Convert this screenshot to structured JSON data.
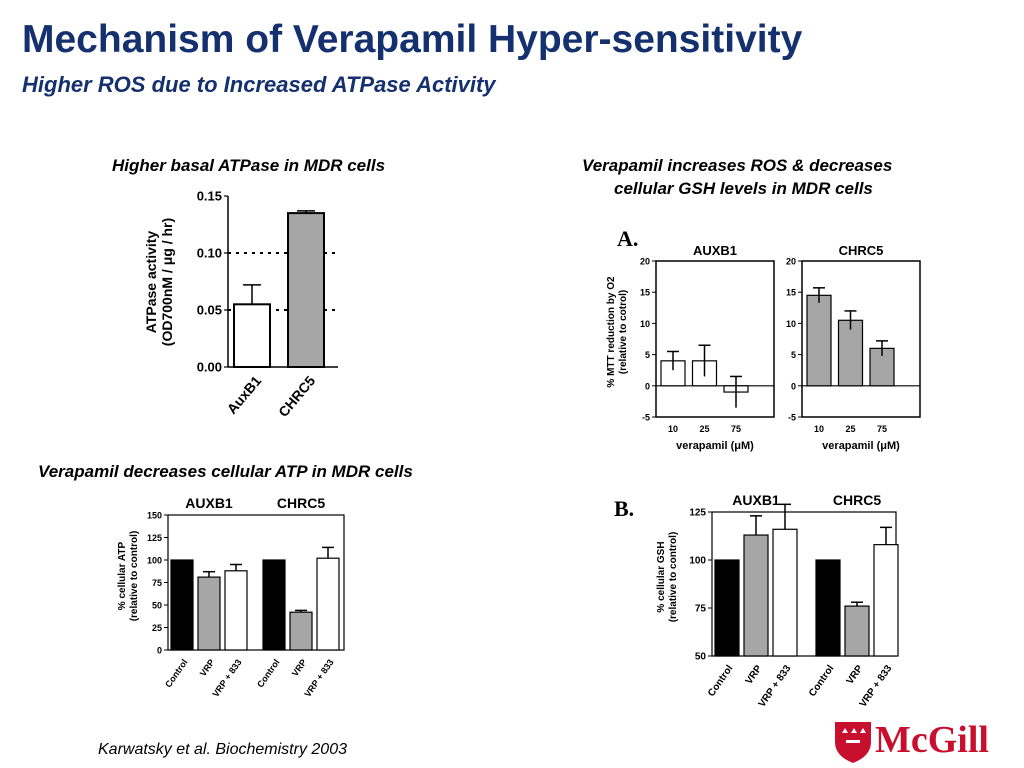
{
  "header": {
    "title": "Mechanism of Verapamil Hyper-sensitivity",
    "subtitle": "Higher ROS due to Increased ATPase Activity"
  },
  "captions": {
    "atpase": "Higher basal ATPase in MDR cells",
    "ros_line1": "Verapamil increases ROS & decreases",
    "ros_line2": "cellular GSH levels in MDR cells",
    "atp": "Verapamil decreases cellular ATP in MDR cells"
  },
  "reference": "Karwatsky et al. Biochemistry 2003",
  "logo": {
    "text": "McGill",
    "color": "#c8102e"
  },
  "colors": {
    "title": "#14306e",
    "black_bar": "#000000",
    "gray_bar": "#a6a6a6",
    "white_bar": "#ffffff"
  },
  "chart_data": [
    {
      "id": "atpase",
      "type": "bar",
      "categories": [
        "AuxB1",
        "CHRC5"
      ],
      "values": [
        0.055,
        0.135
      ],
      "errors": [
        0.017,
        0.002
      ],
      "ylabel_line1": "ATPase activity",
      "ylabel_line2": "(OD700nM / μg / hr)",
      "ylim": [
        0,
        0.15
      ],
      "yticks": [
        "0.00",
        "0.05",
        "0.10",
        "0.15"
      ],
      "dotted_lines": [
        0.05,
        0.1
      ]
    },
    {
      "id": "mtt_auxb1",
      "type": "bar",
      "panel_label": "A.",
      "title": "AUXB1",
      "categories": [
        "10",
        "25",
        "75"
      ],
      "values": [
        4,
        4,
        -1
      ],
      "errors": [
        1.5,
        2.5,
        2.5
      ],
      "xlabel": "verapamil (μM)",
      "ylabel_line1": "% MTT reduction by O2",
      "ylabel_line2": "(relative to cotrol)",
      "ylim": [
        -5,
        20
      ],
      "yticks": [
        "-5",
        "0",
        "5",
        "10",
        "15",
        "20"
      ]
    },
    {
      "id": "mtt_chrc5",
      "type": "bar",
      "title": "CHRC5",
      "categories": [
        "10",
        "25",
        "75"
      ],
      "values": [
        14.5,
        10.5,
        6
      ],
      "errors": [
        1.2,
        1.5,
        1.2
      ],
      "xlabel": "verapamil (μM)",
      "ylim": [
        -5,
        20
      ],
      "yticks": [
        "-5",
        "0",
        "5",
        "10",
        "15",
        "20"
      ]
    },
    {
      "id": "atp",
      "type": "bar",
      "group_titles": [
        "AUXB1",
        "CHRC5"
      ],
      "categories": [
        "Control",
        "VRP",
        "VRP + 833"
      ],
      "series": [
        {
          "name": "AUXB1",
          "values": [
            100,
            81,
            88
          ],
          "errors": [
            0,
            6,
            7
          ]
        },
        {
          "name": "CHRC5",
          "values": [
            100,
            42,
            102
          ],
          "errors": [
            0,
            2,
            12
          ]
        }
      ],
      "ylabel_line1": "% cellular ATP",
      "ylabel_line2": "(relative to control)",
      "ylim": [
        0,
        150
      ],
      "yticks": [
        "0",
        "25",
        "50",
        "75",
        "100",
        "125",
        "150"
      ]
    },
    {
      "id": "gsh",
      "type": "bar",
      "panel_label": "B.",
      "group_titles": [
        "AUXB1",
        "CHRC5"
      ],
      "categories": [
        "Control",
        "VRP",
        "VRP + 833"
      ],
      "series": [
        {
          "name": "AUXB1",
          "values": [
            100,
            113,
            116
          ],
          "errors": [
            0,
            10,
            13
          ]
        },
        {
          "name": "CHRC5",
          "values": [
            100,
            76,
            108
          ],
          "errors": [
            0,
            2,
            9
          ]
        }
      ],
      "ylabel_line1": "% cellular GSH",
      "ylabel_line2": "(relative to control)",
      "ylim": [
        50,
        125
      ],
      "yticks": [
        "50",
        "75",
        "100",
        "125"
      ]
    }
  ]
}
